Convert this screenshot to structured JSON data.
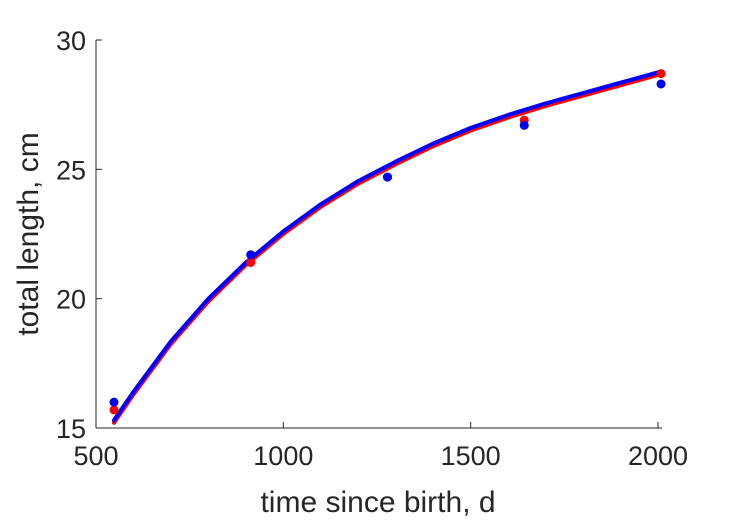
{
  "chart_data": {
    "type": "scatter",
    "xlabel": "time since birth, d",
    "ylabel": "total length, cm",
    "xlim": [
      500,
      2000
    ],
    "ylim": [
      15,
      30
    ],
    "xticks": [
      500,
      1000,
      1500,
      2000
    ],
    "yticks": [
      15,
      20,
      25,
      30
    ],
    "grid": false,
    "series": [
      {
        "kind": "points",
        "color": "#ff0000",
        "points": [
          {
            "x": 548,
            "y": 15.7
          },
          {
            "x": 913,
            "y": 21.4
          },
          {
            "x": 1278,
            "y": 24.7
          },
          {
            "x": 1643,
            "y": 26.9
          },
          {
            "x": 2008,
            "y": 28.7
          }
        ]
      },
      {
        "kind": "points",
        "color": "#0000ff",
        "points": [
          {
            "x": 548,
            "y": 16.0
          },
          {
            "x": 913,
            "y": 21.7
          },
          {
            "x": 1278,
            "y": 24.7
          },
          {
            "x": 1643,
            "y": 26.7
          },
          {
            "x": 2008,
            "y": 28.3
          }
        ]
      },
      {
        "kind": "curve",
        "color": "#ff0000",
        "points": [
          {
            "x": 548,
            "y": 15.2
          },
          {
            "x": 600,
            "y": 16.3
          },
          {
            "x": 700,
            "y": 18.25
          },
          {
            "x": 800,
            "y": 19.9
          },
          {
            "x": 900,
            "y": 21.3
          },
          {
            "x": 1000,
            "y": 22.5
          },
          {
            "x": 1100,
            "y": 23.55
          },
          {
            "x": 1200,
            "y": 24.45
          },
          {
            "x": 1300,
            "y": 25.2
          },
          {
            "x": 1400,
            "y": 25.9
          },
          {
            "x": 1500,
            "y": 26.5
          },
          {
            "x": 1600,
            "y": 27.0
          },
          {
            "x": 1700,
            "y": 27.45
          },
          {
            "x": 1800,
            "y": 27.85
          },
          {
            "x": 1900,
            "y": 28.25
          },
          {
            "x": 2000,
            "y": 28.65
          }
        ]
      },
      {
        "kind": "curve",
        "color": "#0000ff",
        "points": [
          {
            "x": 548,
            "y": 15.3
          },
          {
            "x": 600,
            "y": 16.4
          },
          {
            "x": 700,
            "y": 18.35
          },
          {
            "x": 800,
            "y": 20.0
          },
          {
            "x": 900,
            "y": 21.4
          },
          {
            "x": 1000,
            "y": 22.6
          },
          {
            "x": 1100,
            "y": 23.65
          },
          {
            "x": 1200,
            "y": 24.55
          },
          {
            "x": 1300,
            "y": 25.3
          },
          {
            "x": 1400,
            "y": 26.0
          },
          {
            "x": 1500,
            "y": 26.6
          },
          {
            "x": 1600,
            "y": 27.1
          },
          {
            "x": 1700,
            "y": 27.55
          },
          {
            "x": 1800,
            "y": 27.95
          },
          {
            "x": 1900,
            "y": 28.35
          },
          {
            "x": 2000,
            "y": 28.75
          }
        ]
      }
    ]
  }
}
